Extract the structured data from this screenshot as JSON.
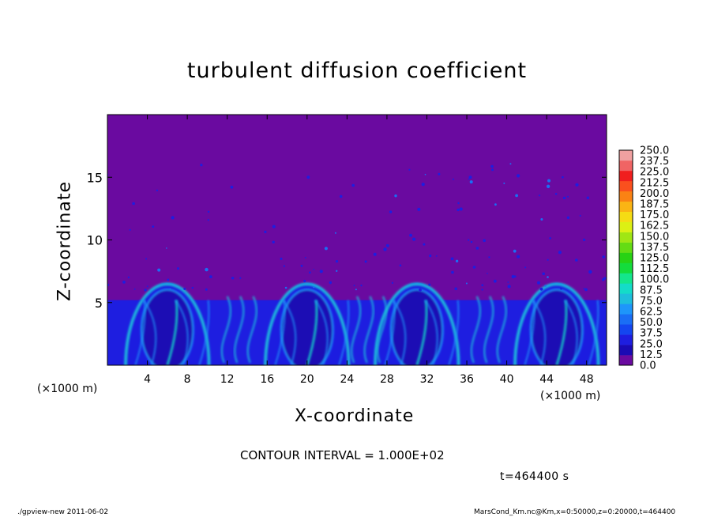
{
  "chart_data": {
    "type": "heatmap",
    "title": "turbulent diffusion coefficient",
    "xlabel": "X-coordinate",
    "ylabel": "Z-coordinate",
    "x_unit_label": "(×1000 m)",
    "xlim": [
      0,
      50
    ],
    "ylim": [
      0,
      20
    ],
    "x_ticks": [
      4,
      8,
      12,
      16,
      20,
      24,
      28,
      32,
      36,
      40,
      44,
      48
    ],
    "y_ticks": [
      5,
      10,
      15
    ],
    "colorbar": {
      "levels": [
        0.0,
        12.5,
        25.0,
        37.5,
        50.0,
        62.5,
        75.0,
        87.5,
        100.0,
        112.5,
        125.0,
        137.5,
        150.0,
        162.5,
        175.0,
        187.5,
        200.0,
        212.5,
        225.0,
        237.5,
        250.0
      ],
      "colors": [
        "#6a0aa0",
        "#1a0ab4",
        "#1e1ee0",
        "#1446f0",
        "#1a6ef5",
        "#1e96fa",
        "#1ebedc",
        "#14dcc8",
        "#14e68c",
        "#14dc3c",
        "#28d214",
        "#64dc14",
        "#a0e614",
        "#dcf014",
        "#f5dc14",
        "#fab414",
        "#fa8214",
        "#fa501e",
        "#f01e1e",
        "#f06464",
        "#f0a0a0"
      ]
    },
    "contour_interval": "CONTOUR INTERVAL = 1.000E+02",
    "time": "t=464400 s",
    "boundary_layer_top": 6.5,
    "convective_cells_x": [
      6,
      20,
      31,
      45
    ],
    "background_color": "#6a0aa0"
  },
  "footer": {
    "left": "./gpview-new  2011-06-02",
    "right": "MarsCond_Km.nc@Km,x=0:50000,z=0:20000,t=464400"
  }
}
